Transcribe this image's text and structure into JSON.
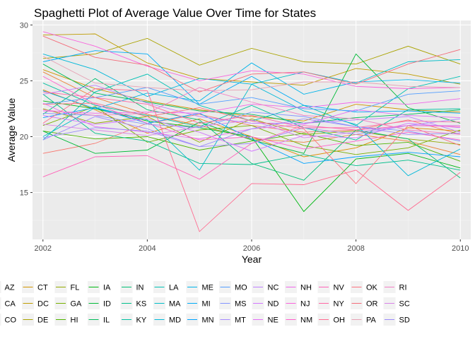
{
  "chart_data": {
    "type": "line",
    "title": "Spaghetti Plot of Average Value Over Time for States",
    "xlabel": "Year",
    "ylabel": "Average Value",
    "xlim": [
      2001.8,
      2010.2
    ],
    "ylim": [
      10.8,
      30.4
    ],
    "x_ticks": [
      2002,
      2004,
      2006,
      2008,
      2010
    ],
    "y_ticks": [
      15,
      20,
      25,
      30
    ],
    "x": [
      2002,
      2003,
      2004,
      2005,
      2006,
      2007,
      2008,
      2009,
      2010
    ],
    "grid": true,
    "legend_position": "bottom",
    "series": [
      {
        "name": "AZ",
        "color": "#F8766D",
        "values": [
          18.5,
          19.4,
          21.2,
          22.0,
          21.0,
          20.4,
          20.6,
          21.5,
          20.2
        ]
      },
      {
        "name": "CA",
        "color": "#EC8239",
        "values": [
          25.8,
          23.5,
          22.0,
          21.0,
          19.8,
          19.5,
          20.2,
          19.6,
          18.4
        ]
      },
      {
        "name": "CO",
        "color": "#DF8D00",
        "values": [
          24.2,
          22.4,
          20.3,
          21.6,
          20.0,
          18.2,
          19.0,
          20.8,
          20.5
        ]
      },
      {
        "name": "CT",
        "color": "#D09400",
        "values": [
          26.0,
          24.3,
          23.2,
          22.4,
          21.8,
          21.4,
          22.9,
          22.4,
          22.2
        ]
      },
      {
        "name": "DC",
        "color": "#BE9C00",
        "values": [
          29.1,
          29.2,
          26.6,
          25.2,
          24.9,
          24.6,
          26.1,
          25.6,
          24.7
        ]
      },
      {
        "name": "DE",
        "color": "#AAA300",
        "values": [
          27.0,
          27.4,
          28.8,
          26.4,
          27.9,
          26.7,
          26.5,
          28.1,
          26.5
        ]
      },
      {
        "name": "FL",
        "color": "#93AA00",
        "values": [
          22.5,
          21.2,
          21.8,
          19.5,
          21.6,
          20.2,
          20.5,
          19.8,
          19.3
        ]
      },
      {
        "name": "GA",
        "color": "#77AF00",
        "values": [
          21.0,
          22.7,
          19.5,
          20.6,
          21.0,
          19.2,
          18.4,
          19.0,
          20.6
        ]
      },
      {
        "name": "HI",
        "color": "#4FB400",
        "values": [
          20.5,
          19.8,
          20.0,
          18.8,
          19.6,
          20.3,
          19.2,
          19.5,
          17.8
        ]
      },
      {
        "name": "IA",
        "color": "#00B813",
        "values": [
          23.2,
          22.5,
          21.4,
          20.8,
          20.0,
          13.3,
          18.0,
          18.5,
          17.2
        ]
      },
      {
        "name": "ID",
        "color": "#00BA38",
        "values": [
          20.5,
          18.5,
          18.8,
          21.3,
          19.7,
          18.5,
          27.4,
          22.6,
          21.2
        ]
      },
      {
        "name": "IL",
        "color": "#00BC59",
        "values": [
          26.5,
          23.9,
          23.1,
          22.3,
          22.0,
          21.2,
          21.7,
          22.0,
          22.4
        ]
      },
      {
        "name": "IN",
        "color": "#00BE73",
        "values": [
          22.0,
          25.2,
          22.4,
          21.5,
          17.6,
          16.1,
          20.6,
          19.8,
          16.3
        ]
      },
      {
        "name": "KS",
        "color": "#00BF8B",
        "values": [
          23.8,
          20.3,
          19.6,
          17.6,
          17.5,
          18.4,
          17.4,
          17.9,
          17.0
        ]
      },
      {
        "name": "KY",
        "color": "#00C0A0",
        "values": [
          24.8,
          22.8,
          21.9,
          20.9,
          22.8,
          20.8,
          19.7,
          22.4,
          22.5
        ]
      },
      {
        "name": "LA",
        "color": "#00C0B4",
        "values": [
          19.7,
          24.0,
          25.6,
          22.8,
          21.4,
          22.8,
          21.0,
          24.3,
          25.4
        ]
      },
      {
        "name": "MA",
        "color": "#00BDC8",
        "values": [
          20.0,
          22.6,
          21.5,
          17.0,
          24.7,
          25.8,
          24.8,
          26.7,
          26.9
        ]
      },
      {
        "name": "MD",
        "color": "#00B8D9",
        "values": [
          27.4,
          26.0,
          23.6,
          25.2,
          24.7,
          22.3,
          21.1,
          16.5,
          18.9
        ]
      },
      {
        "name": "ME",
        "color": "#00B3E9",
        "values": [
          24.1,
          22.5,
          23.9,
          23.2,
          26.6,
          23.8,
          24.9,
          25.1,
          24.8
        ]
      },
      {
        "name": "MI",
        "color": "#00ABF6",
        "values": [
          26.7,
          27.7,
          27.4,
          22.9,
          25.4,
          22.8,
          22.2,
          22.3,
          22.1
        ]
      },
      {
        "name": "MN",
        "color": "#00A3FF",
        "values": [
          21.7,
          22.6,
          21.2,
          22.1,
          19.8,
          17.6,
          18.2,
          18.6,
          18.2
        ]
      },
      {
        "name": "MO",
        "color": "#529EFF",
        "values": [
          22.9,
          23.5,
          24.4,
          22.9,
          23.5,
          22.5,
          22.3,
          23.8,
          24.1
        ]
      },
      {
        "name": "MS",
        "color": "#8395FF",
        "values": [
          22.1,
          21.9,
          21.1,
          20.8,
          22.2,
          21.8,
          20.9,
          20.5,
          19.6
        ]
      },
      {
        "name": "MT",
        "color": "#A58AFF",
        "values": [
          19.7,
          21.8,
          20.7,
          19.1,
          19.4,
          20.8,
          20.2,
          21.0,
          21.6
        ]
      },
      {
        "name": "NC",
        "color": "#BF80FF",
        "values": [
          23.8,
          24.6,
          23.0,
          21.8,
          21.2,
          21.2,
          21.5,
          21.8,
          20.4
        ]
      },
      {
        "name": "ND",
        "color": "#D376FF",
        "values": [
          21.9,
          21.1,
          21.6,
          20.4,
          18.7,
          20.1,
          19.9,
          21.2,
          20.8
        ]
      },
      {
        "name": "NE",
        "color": "#E36EF6",
        "values": [
          23.0,
          20.9,
          20.4,
          19.8,
          20.7,
          21.1,
          22.4,
          21.9,
          21.7
        ]
      },
      {
        "name": "NH",
        "color": "#F066EA",
        "values": [
          22.3,
          22.1,
          22.2,
          22.1,
          22.9,
          22.6,
          23.1,
          22.9,
          23.4
        ]
      },
      {
        "name": "NJ",
        "color": "#F962DD",
        "values": [
          29.4,
          28.1,
          26.3,
          25.0,
          25.9,
          25.6,
          24.5,
          24.3,
          24.4
        ]
      },
      {
        "name": "NM",
        "color": "#FF61CC",
        "values": [
          25.4,
          22.9,
          21.2,
          19.7,
          20.0,
          18.9,
          19.6,
          20.4,
          19.7
        ]
      },
      {
        "name": "NV",
        "color": "#FF63B9",
        "values": [
          16.4,
          18.2,
          18.3,
          16.2,
          19.4,
          21.0,
          20.6,
          21.0,
          20.9
        ]
      },
      {
        "name": "NY",
        "color": "#FF67A4",
        "values": [
          24.0,
          23.5,
          22.9,
          21.2,
          21.9,
          20.8,
          20.8,
          21.4,
          21.3
        ]
      },
      {
        "name": "OH",
        "color": "#FF6C91",
        "values": [
          21.2,
          24.3,
          24.1,
          11.5,
          15.8,
          15.7,
          17.0,
          13.4,
          16.8
        ]
      },
      {
        "name": "OK",
        "color": "#FC717F",
        "values": [
          22.9,
          23.0,
          21.8,
          22.6,
          21.4,
          20.7,
          15.8,
          21.0,
          19.2
        ]
      },
      {
        "name": "OR",
        "color": "#F36C7A",
        "values": [
          29.0,
          27.1,
          26.4,
          24.0,
          25.6,
          25.8,
          24.7,
          26.5,
          27.8
        ]
      },
      {
        "name": "PA",
        "color": "#E7A0B4",
        "values": [
          27.2,
          24.8,
          24.4,
          24.1,
          24.2,
          24.9,
          24.9,
          24.5,
          24.4
        ]
      },
      {
        "name": "RI",
        "color": "#F17FC4",
        "values": [
          22.4,
          21.9,
          22.1,
          24.4,
          23.1,
          21.9,
          21.6,
          20.6,
          20.2
        ]
      },
      {
        "name": "SC",
        "color": "#D883E8",
        "values": [
          21.1,
          20.6,
          20.1,
          20.9,
          21.5,
          19.9,
          20.4,
          21.0,
          21.0
        ]
      },
      {
        "name": "SD",
        "color": "#9A8BFA",
        "values": [
          19.9,
          20.8,
          20.5,
          19.1,
          20.7,
          21.6,
          20.9,
          20.2,
          20.3
        ]
      }
    ]
  }
}
